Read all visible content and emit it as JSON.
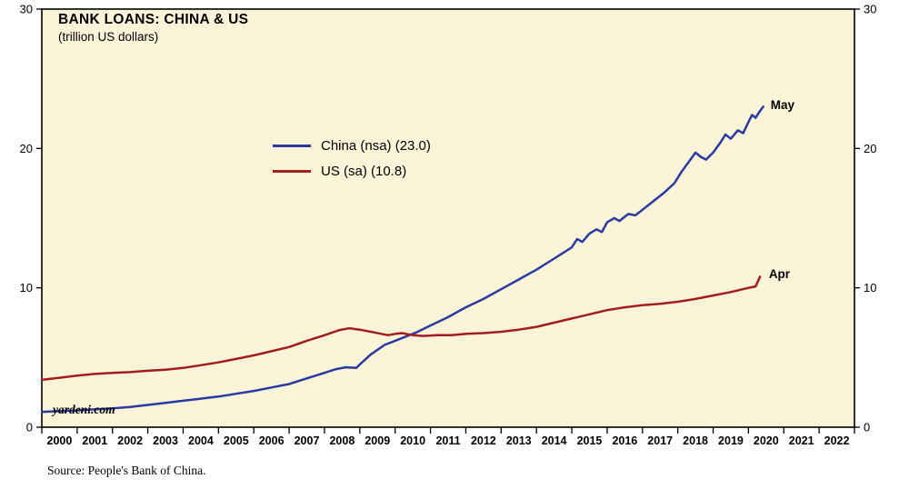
{
  "title": "BANK LOANS: CHINA & US",
  "subtitle": "(trillion US dollars)",
  "watermark": "yardeni.com",
  "source": "Source: People's Bank of China.",
  "colors": {
    "plot_bg": "#fbf4d8",
    "axis": "#000000",
    "china": "#2a3aa0",
    "us": "#a21d1d"
  },
  "legend": [
    {
      "label": "China (nsa) (23.0)",
      "color": "#2a3aa0"
    },
    {
      "label": "US (sa) (10.8)",
      "color": "#a21d1d"
    }
  ],
  "chart_data": {
    "type": "line",
    "title": "BANK LOANS: CHINA & US",
    "ylabel": "trillion US dollars",
    "xlim": [
      2000,
      2023
    ],
    "ylim": [
      0,
      30
    ],
    "yticks": [
      0,
      10,
      20,
      30
    ],
    "xtick_years": [
      2000,
      2001,
      2002,
      2003,
      2004,
      2005,
      2006,
      2007,
      2008,
      2009,
      2010,
      2011,
      2012,
      2013,
      2014,
      2015,
      2016,
      2017,
      2018,
      2019,
      2020,
      2021,
      2022
    ],
    "legend_position": "center-left",
    "grid": false,
    "series": [
      {
        "name": "China (nsa)",
        "color": "#2a3aa0",
        "end_value": 23.0,
        "points": [
          [
            2000.0,
            1.1
          ],
          [
            2000.5,
            1.15
          ],
          [
            2001.0,
            1.2
          ],
          [
            2001.5,
            1.28
          ],
          [
            2002.0,
            1.35
          ],
          [
            2002.5,
            1.45
          ],
          [
            2003.0,
            1.6
          ],
          [
            2003.5,
            1.75
          ],
          [
            2004.0,
            1.9
          ],
          [
            2004.5,
            2.05
          ],
          [
            2005.0,
            2.2
          ],
          [
            2005.5,
            2.4
          ],
          [
            2006.0,
            2.6
          ],
          [
            2006.5,
            2.85
          ],
          [
            2007.0,
            3.1
          ],
          [
            2007.5,
            3.5
          ],
          [
            2008.0,
            3.9
          ],
          [
            2008.3,
            4.15
          ],
          [
            2008.6,
            4.3
          ],
          [
            2008.9,
            4.25
          ],
          [
            2009.0,
            4.5
          ],
          [
            2009.3,
            5.2
          ],
          [
            2009.7,
            5.9
          ],
          [
            2010.0,
            6.2
          ],
          [
            2010.3,
            6.5
          ],
          [
            2010.6,
            6.8
          ],
          [
            2011.0,
            7.3
          ],
          [
            2011.5,
            7.9
          ],
          [
            2012.0,
            8.6
          ],
          [
            2012.5,
            9.2
          ],
          [
            2013.0,
            9.9
          ],
          [
            2013.5,
            10.6
          ],
          [
            2014.0,
            11.3
          ],
          [
            2014.5,
            12.1
          ],
          [
            2015.0,
            12.9
          ],
          [
            2015.15,
            13.5
          ],
          [
            2015.3,
            13.3
          ],
          [
            2015.5,
            13.9
          ],
          [
            2015.7,
            14.2
          ],
          [
            2015.85,
            14.0
          ],
          [
            2016.0,
            14.7
          ],
          [
            2016.2,
            15.0
          ],
          [
            2016.35,
            14.8
          ],
          [
            2016.6,
            15.3
          ],
          [
            2016.8,
            15.2
          ],
          [
            2017.0,
            15.6
          ],
          [
            2017.3,
            16.2
          ],
          [
            2017.6,
            16.8
          ],
          [
            2017.9,
            17.5
          ],
          [
            2018.1,
            18.3
          ],
          [
            2018.3,
            19.0
          ],
          [
            2018.5,
            19.7
          ],
          [
            2018.65,
            19.4
          ],
          [
            2018.8,
            19.2
          ],
          [
            2019.0,
            19.7
          ],
          [
            2019.2,
            20.4
          ],
          [
            2019.35,
            21.0
          ],
          [
            2019.5,
            20.7
          ],
          [
            2019.7,
            21.3
          ],
          [
            2019.85,
            21.1
          ],
          [
            2020.0,
            21.9
          ],
          [
            2020.1,
            22.4
          ],
          [
            2020.2,
            22.2
          ],
          [
            2020.3,
            22.6
          ],
          [
            2020.42,
            23.0
          ]
        ]
      },
      {
        "name": "US (sa)",
        "color": "#a21d1d",
        "end_value": 10.8,
        "points": [
          [
            2000.0,
            3.4
          ],
          [
            2000.5,
            3.55
          ],
          [
            2001.0,
            3.7
          ],
          [
            2001.5,
            3.82
          ],
          [
            2002.0,
            3.9
          ],
          [
            2002.5,
            3.95
          ],
          [
            2003.0,
            4.05
          ],
          [
            2003.5,
            4.12
          ],
          [
            2004.0,
            4.25
          ],
          [
            2004.5,
            4.45
          ],
          [
            2005.0,
            4.65
          ],
          [
            2005.5,
            4.9
          ],
          [
            2006.0,
            5.15
          ],
          [
            2006.5,
            5.45
          ],
          [
            2007.0,
            5.75
          ],
          [
            2007.5,
            6.2
          ],
          [
            2008.0,
            6.6
          ],
          [
            2008.4,
            6.95
          ],
          [
            2008.7,
            7.1
          ],
          [
            2009.0,
            7.0
          ],
          [
            2009.4,
            6.8
          ],
          [
            2009.8,
            6.6
          ],
          [
            2010.0,
            6.7
          ],
          [
            2010.2,
            6.75
          ],
          [
            2010.5,
            6.6
          ],
          [
            2010.8,
            6.55
          ],
          [
            2011.2,
            6.6
          ],
          [
            2011.6,
            6.6
          ],
          [
            2012.0,
            6.7
          ],
          [
            2012.5,
            6.75
          ],
          [
            2013.0,
            6.85
          ],
          [
            2013.5,
            7.0
          ],
          [
            2014.0,
            7.2
          ],
          [
            2014.5,
            7.5
          ],
          [
            2015.0,
            7.8
          ],
          [
            2015.5,
            8.1
          ],
          [
            2016.0,
            8.4
          ],
          [
            2016.5,
            8.6
          ],
          [
            2017.0,
            8.75
          ],
          [
            2017.5,
            8.85
          ],
          [
            2018.0,
            9.0
          ],
          [
            2018.5,
            9.2
          ],
          [
            2019.0,
            9.45
          ],
          [
            2019.5,
            9.7
          ],
          [
            2020.0,
            10.0
          ],
          [
            2020.2,
            10.1
          ],
          [
            2020.33,
            10.8
          ]
        ]
      }
    ],
    "annotations": [
      {
        "text": "May",
        "x": 2020.55,
        "y": 23.1,
        "color": "#2a3aa0"
      },
      {
        "text": "Apr",
        "x": 2020.5,
        "y": 10.95,
        "color": "#a21d1d"
      }
    ]
  }
}
